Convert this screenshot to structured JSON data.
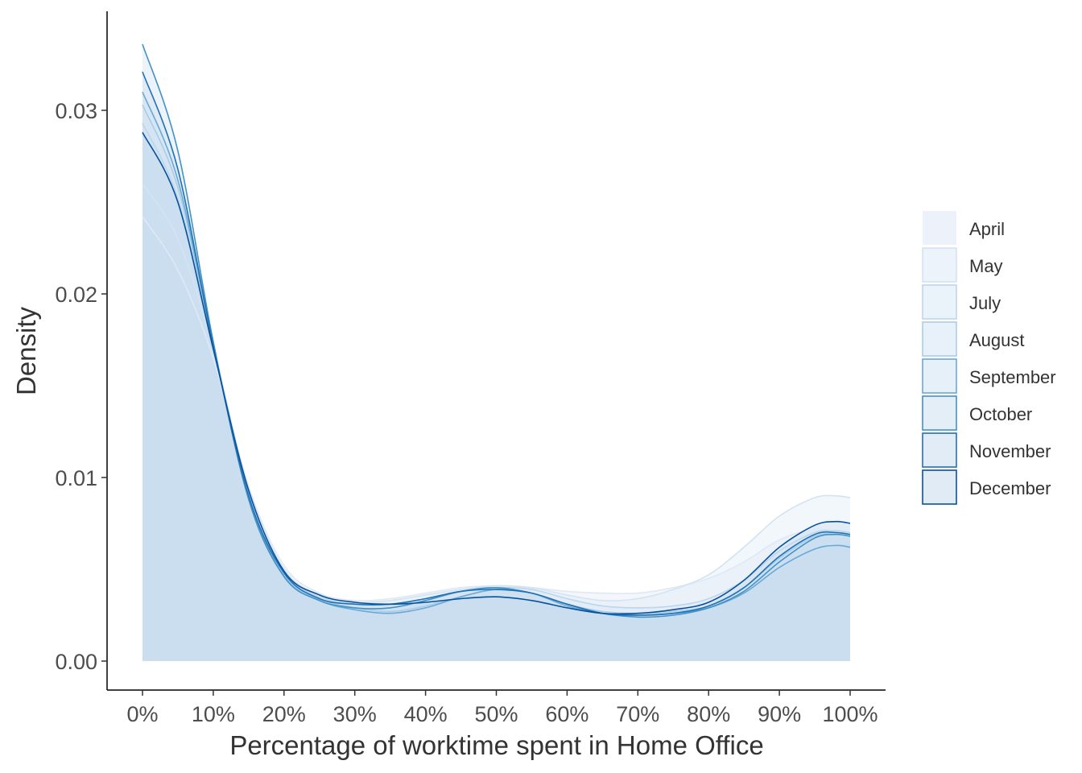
{
  "chart_data": {
    "type": "area",
    "subtype": "density",
    "title": "",
    "xlabel": "Percentage of worktime spent in Home Office",
    "ylabel": "Density",
    "xlim": [
      0,
      100
    ],
    "ylim": [
      0,
      0.0345
    ],
    "x_ticks": [
      0,
      10,
      20,
      30,
      40,
      50,
      60,
      70,
      80,
      90,
      100
    ],
    "x_tick_labels": [
      "0%",
      "10%",
      "20%",
      "30%",
      "40%",
      "50%",
      "60%",
      "70%",
      "80%",
      "90%",
      "100%"
    ],
    "y_ticks": [
      0,
      0.01,
      0.02,
      0.03
    ],
    "y_tick_labels": [
      "0.00",
      "0.01",
      "0.02",
      "0.03"
    ],
    "grid": false,
    "legend_position": "right",
    "x": [
      0,
      5,
      10,
      15,
      20,
      25,
      30,
      35,
      40,
      45,
      50,
      55,
      60,
      65,
      70,
      75,
      80,
      85,
      90,
      95,
      98,
      100
    ],
    "series": [
      {
        "name": "April",
        "fill": "#dfe8f5",
        "stroke": "#dfe8f5",
        "values": [
          0.0242,
          0.0213,
          0.0165,
          0.0095,
          0.0052,
          0.0037,
          0.0033,
          0.0034,
          0.0037,
          0.004,
          0.0041,
          0.004,
          0.0038,
          0.0037,
          0.0037,
          0.004,
          0.0045,
          0.0054,
          0.0066,
          0.0072,
          0.007,
          0.0068
        ]
      },
      {
        "name": "May",
        "fill": "#dce9f6",
        "stroke": "#d2e3f3",
        "values": [
          0.026,
          0.023,
          0.017,
          0.0094,
          0.005,
          0.0036,
          0.0032,
          0.0033,
          0.0036,
          0.0039,
          0.0041,
          0.004,
          0.0036,
          0.0033,
          0.0034,
          0.0039,
          0.0047,
          0.0062,
          0.0079,
          0.0089,
          0.009,
          0.0089
        ]
      },
      {
        "name": "July",
        "fill": "#d9e8f5",
        "stroke": "#bcd6ec",
        "values": [
          0.0293,
          0.0252,
          0.0172,
          0.0091,
          0.0048,
          0.0035,
          0.0031,
          0.0031,
          0.0034,
          0.0038,
          0.004,
          0.0039,
          0.0034,
          0.003,
          0.0029,
          0.003,
          0.0034,
          0.0044,
          0.006,
          0.007,
          0.0071,
          0.007
        ]
      },
      {
        "name": "August",
        "fill": "#d6e6f4",
        "stroke": "#a9cde6",
        "values": [
          0.0303,
          0.0258,
          0.0172,
          0.009,
          0.0047,
          0.0034,
          0.0029,
          0.0027,
          0.003,
          0.0035,
          0.0039,
          0.0037,
          0.0031,
          0.0027,
          0.0026,
          0.0027,
          0.003,
          0.004,
          0.0056,
          0.0068,
          0.0069,
          0.0068
        ]
      },
      {
        "name": "September",
        "fill": "#d2e3f3",
        "stroke": "#6aa9d4",
        "values": [
          0.031,
          0.0262,
          0.0172,
          0.0089,
          0.0046,
          0.0033,
          0.0028,
          0.0026,
          0.0029,
          0.0035,
          0.0039,
          0.0037,
          0.003,
          0.0026,
          0.0025,
          0.0026,
          0.0029,
          0.0037,
          0.0051,
          0.0061,
          0.0063,
          0.0062
        ]
      },
      {
        "name": "October",
        "fill": "#cde0f1",
        "stroke": "#4292c6",
        "values": [
          0.0336,
          0.0278,
          0.0174,
          0.0088,
          0.0046,
          0.0033,
          0.0029,
          0.0029,
          0.0033,
          0.0038,
          0.004,
          0.0037,
          0.0031,
          0.0026,
          0.0024,
          0.0025,
          0.0029,
          0.0038,
          0.0054,
          0.0067,
          0.0069,
          0.0068
        ]
      },
      {
        "name": "November",
        "fill": "#c9ddf0",
        "stroke": "#2171b5",
        "values": [
          0.0321,
          0.0268,
          0.0172,
          0.009,
          0.0048,
          0.0034,
          0.0031,
          0.0031,
          0.0034,
          0.0038,
          0.0039,
          0.0037,
          0.0031,
          0.0026,
          0.0025,
          0.0026,
          0.003,
          0.004,
          0.0057,
          0.0069,
          0.007,
          0.0069
        ]
      },
      {
        "name": "December",
        "fill": "#c6dbef",
        "stroke": "#08519c",
        "values": [
          0.0288,
          0.025,
          0.017,
          0.0093,
          0.0049,
          0.0036,
          0.0032,
          0.0031,
          0.0032,
          0.0034,
          0.0035,
          0.0033,
          0.0029,
          0.0026,
          0.0026,
          0.0028,
          0.0032,
          0.0044,
          0.0062,
          0.0074,
          0.0076,
          0.0075
        ]
      }
    ]
  }
}
